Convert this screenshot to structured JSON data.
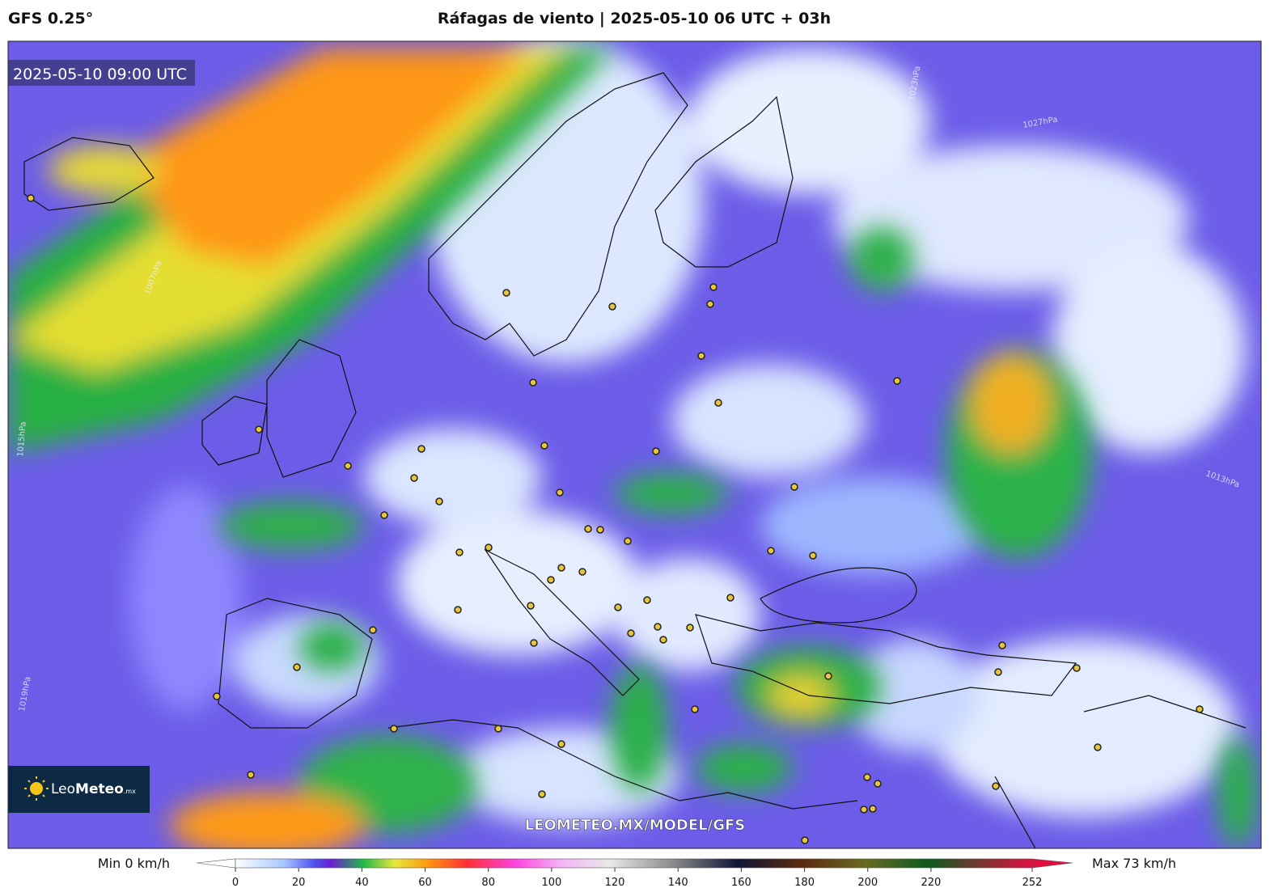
{
  "header": {
    "model": "GFS 0.25°",
    "title": "Ráfagas de viento | 2025-05-10 06 UTC + 03h"
  },
  "map": {
    "valid_time": "2025-05-10 09:00 UTC",
    "watermark": "LEOMETEO.MX/MODEL/GFS",
    "logo": {
      "name_light": "Leo",
      "name_bold": "Meteo",
      "suffix": ".mx"
    },
    "isobar_labels": [
      "1023hPa",
      "1027hPa",
      "1013hPa",
      "1015hPa",
      "1019hPa",
      "1007hPa"
    ]
  },
  "colorbar": {
    "min_label": "Min 0 km/h",
    "max_label": "Max 73 km/h",
    "ticks": [
      0,
      20,
      40,
      60,
      80,
      100,
      120,
      140,
      160,
      180,
      200,
      220,
      252
    ]
  }
}
